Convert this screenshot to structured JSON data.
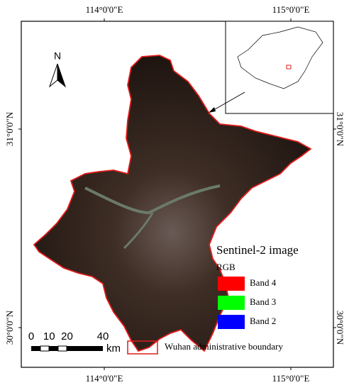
{
  "axes": {
    "top": [
      "114°0'0\"E",
      "115°0'0\"E"
    ],
    "bottom": [
      "114°0'0\"E",
      "115°0'0\"E"
    ],
    "left": [
      "31°0'0\"N",
      "30°0'0\"N"
    ],
    "right": [
      "31°0'0\"N",
      "30°0'0\"N"
    ]
  },
  "north_arrow": "N",
  "scale_bar": {
    "ticks": [
      0,
      10,
      20,
      40
    ],
    "unit": "km"
  },
  "legend": {
    "title": "Sentinel-2 image",
    "subtitle": "RGB",
    "items": [
      {
        "label": "Band 4",
        "color": "#ff0000"
      },
      {
        "label": "Band 3",
        "color": "#00ff00"
      },
      {
        "label": "Band 2",
        "color": "#0000ff"
      }
    ],
    "boundary": "Wuhan administrative boundary"
  }
}
